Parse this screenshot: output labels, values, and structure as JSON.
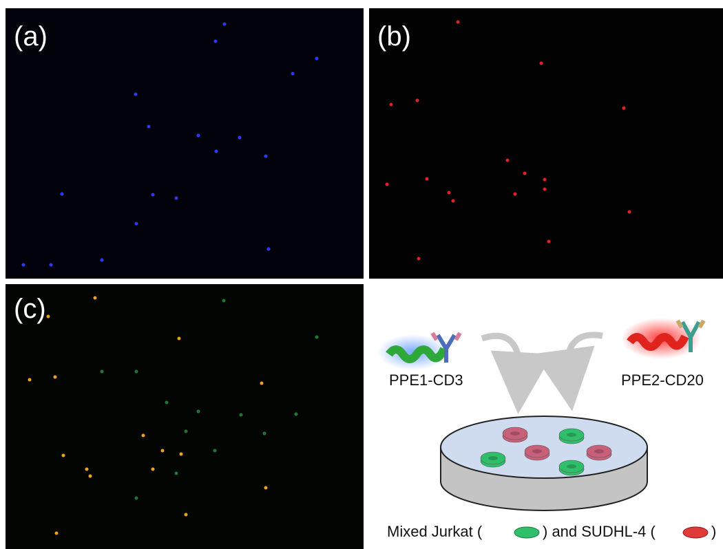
{
  "panels": [
    {
      "label": "(a)"
    },
    {
      "label": "(b)"
    },
    {
      "label": "(c)"
    }
  ],
  "schematic": {
    "reagents": [
      "PPE1-CD3",
      "PPE2-CD20"
    ],
    "caption": {
      "before": "Mixed Jurkat (",
      "middle": ") and SUDHL-4 (",
      "after": ")"
    }
  }
}
